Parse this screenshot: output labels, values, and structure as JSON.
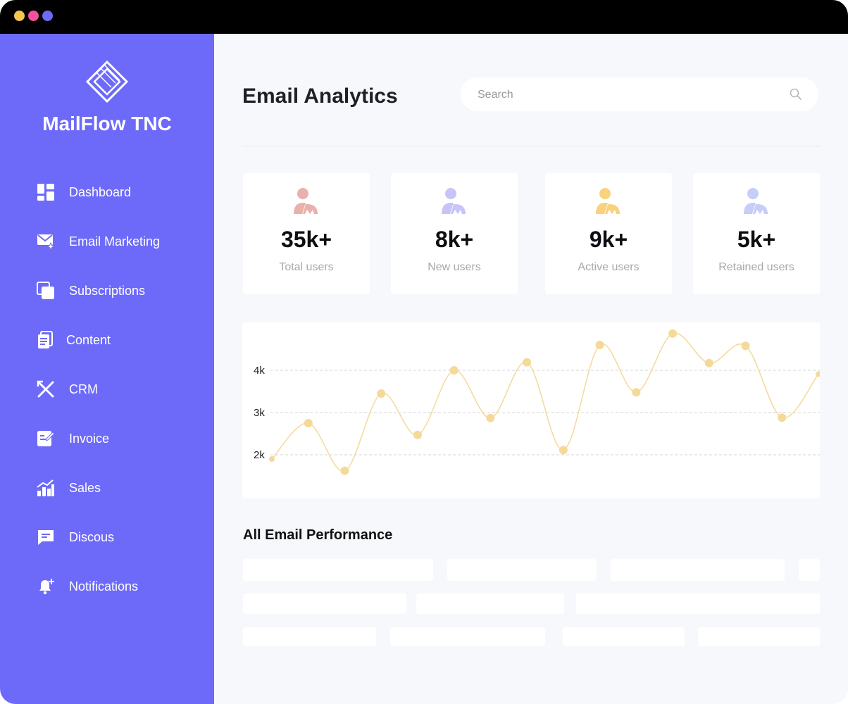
{
  "window": {
    "dots": [
      "#f5c64f",
      "#f94f9d",
      "#6d6af9"
    ]
  },
  "sidebar": {
    "brand": "MailFlow TNC",
    "items": [
      {
        "label": "Dashboard",
        "icon": "dashboard-icon"
      },
      {
        "label": "Email Marketing",
        "icon": "email-marketing-icon"
      },
      {
        "label": "Subscriptions",
        "icon": "subscriptions-icon"
      },
      {
        "label": "Content",
        "icon": "content-icon"
      },
      {
        "label": "CRM",
        "icon": "crm-icon"
      },
      {
        "label": "Invoice",
        "icon": "invoice-icon"
      },
      {
        "label": "Sales",
        "icon": "sales-icon"
      },
      {
        "label": "Discous",
        "icon": "discuss-icon"
      },
      {
        "label": "Notifications",
        "icon": "notifications-icon"
      }
    ]
  },
  "header": {
    "title": "Email Analytics",
    "search_placeholder": "Search"
  },
  "stats": [
    {
      "value": "35k+",
      "label": "Total users",
      "color": "#eab0ac"
    },
    {
      "value": "8k+",
      "label": "New users",
      "color": "#c7c5f7"
    },
    {
      "value": "9k+",
      "label": "Active users",
      "color": "#f8d27e"
    },
    {
      "value": "5k+",
      "label": "Retained users",
      "color": "#c6cdf8"
    }
  ],
  "colors": {
    "accent": "#6d6af9",
    "chart_line": "#f5d999"
  },
  "chart_data": {
    "type": "line",
    "yticks": [
      "4k",
      "3k",
      "2k"
    ],
    "ytick_values": [
      4000,
      3000,
      2000
    ],
    "grid": "dashed horizontal",
    "series": [
      {
        "values": [
          1900,
          2750,
          1620,
          3450,
          2470,
          4000,
          2870,
          4190,
          2110,
          4600,
          3480,
          4870,
          4170,
          4580,
          2880,
          3910
        ]
      }
    ]
  },
  "performance": {
    "title": "All Email Performance"
  }
}
